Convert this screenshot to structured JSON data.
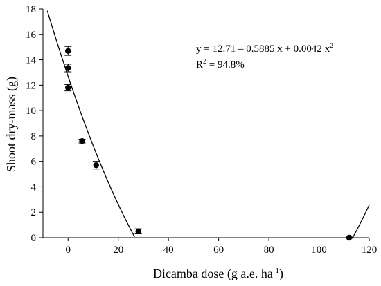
{
  "chart_data": {
    "type": "scatter",
    "xlabel": "Dicamba dose (g a.e. ha",
    "xlabel_sup": "-1",
    "xlabel_close": ")",
    "ylabel": "Shoot dry-mass (g)",
    "xlim": [
      -10,
      120
    ],
    "ylim": [
      0,
      18
    ],
    "xticks": [
      0,
      20,
      40,
      60,
      80,
      100,
      120
    ],
    "yticks": [
      0,
      2,
      4,
      6,
      8,
      10,
      12,
      14,
      16,
      18
    ],
    "grid": false,
    "points": [
      {
        "x": 0,
        "y": 14.7,
        "err": 0.35
      },
      {
        "x": 0,
        "y": 13.35,
        "err": 0.3
      },
      {
        "x": 0,
        "y": 11.8,
        "err": 0.25
      },
      {
        "x": 5.6,
        "y": 7.6,
        "err": 0.15
      },
      {
        "x": 11.2,
        "y": 5.7,
        "err": 0.3
      },
      {
        "x": 28,
        "y": 0.5,
        "err": 0.2
      },
      {
        "x": 112,
        "y": 0.0,
        "err": 0.05
      }
    ],
    "fit": {
      "intercept": 12.71,
      "b1": -0.5885,
      "b2": 0.0042
    },
    "equation": {
      "line1_main": "y = 12.71 – 0.5885 x + 0.0042 x",
      "line1_sup": "2",
      "line2_pre": "R",
      "line2_sup": "2",
      "line2_post": " = 94.8%"
    },
    "colors": {
      "marker": "#000000",
      "line": "#000000",
      "axis": "#000000"
    }
  }
}
